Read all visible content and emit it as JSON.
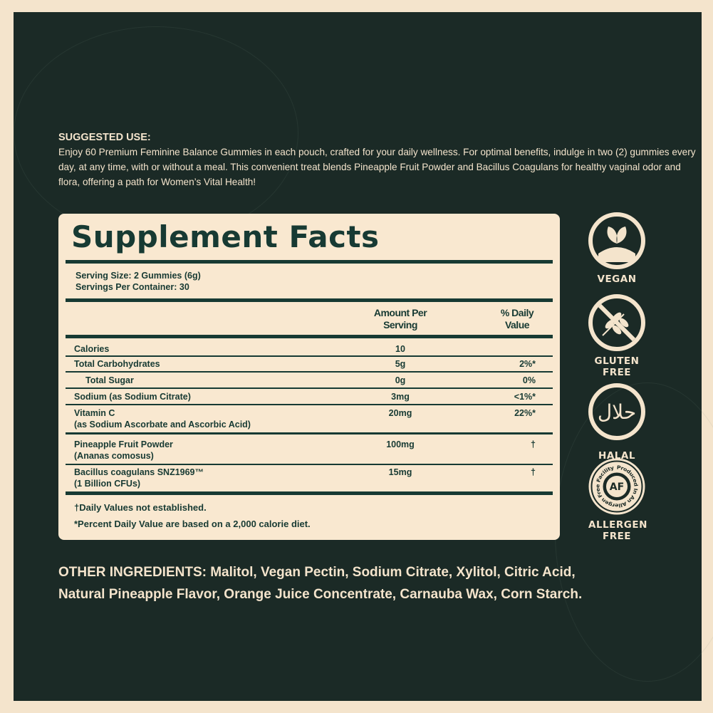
{
  "suggested_use": {
    "heading": "SUGGESTED USE:",
    "text": "Enjoy 60 Premium Feminine Balance Gummies in each pouch, crafted for your daily wellness. For optimal benefits, indulge in two (2) gummies every day, at any time, with or without a meal. This convenient treat blends Pineapple Fruit Powder and Bacillus Coagulans for healthy vaginal odor and flora, offering a path for Women’s Vital Health!"
  },
  "facts": {
    "title": "Supplement Facts",
    "serving_size": "Serving Size: 2 Gummies (6g)",
    "servings_per_container": "Servings Per Container: 30",
    "col_amount": "Amount Per Serving",
    "col_dv": "% Daily Value",
    "rows": [
      {
        "name": "Calories",
        "sub": "",
        "amount": "10",
        "dv": ""
      },
      {
        "name": "Total Carbohydrates",
        "sub": "",
        "amount": "5g",
        "dv": "2%*"
      },
      {
        "name": "Total Sugar",
        "sub": "",
        "amount": "0g",
        "dv": "0%"
      },
      {
        "name": "Sodium (as Sodium Citrate)",
        "sub": "",
        "amount": "3mg",
        "dv": "<1%*"
      },
      {
        "name": "Vitamin C",
        "sub": "(as Sodium Ascorbate and Ascorbic Acid)",
        "amount": "20mg",
        "dv": "22%*"
      },
      {
        "name": "Pineapple Fruit Powder",
        "sub": "(Ananas comosus)",
        "amount": "100mg",
        "dv": "†"
      },
      {
        "name": "Bacillus coagulans SNZ1969™",
        "sub": "(1 Billion CFUs)",
        "amount": "15mg",
        "dv": "†"
      }
    ],
    "footnote1": "†Daily Values not established.",
    "footnote2": "*Percent Daily Value are based on a 2,000 calorie diet."
  },
  "other_ingredients": "OTHER INGREDIENTS: Malitol, Vegan Pectin, Sodium Citrate, Xylitol, Citric Acid, Natural Pineapple Flavor, Orange Juice Concentrate, Carnauba Wax, Corn Starch.",
  "badges": [
    {
      "icon": "vegan-leaf-icon",
      "label": "VEGAN"
    },
    {
      "icon": "gluten-free-wheat-icon",
      "label": "GLUTEN FREE"
    },
    {
      "icon": "halal-icon",
      "label": "HALAL",
      "glyph": "حلال"
    },
    {
      "icon": "allergen-free-icon",
      "label": "ALLERGEN FREE",
      "glyph": "AF",
      "ring_text": "Produced In An Allergen Free Facility"
    }
  ],
  "colors": {
    "background": "#1b2a26",
    "panel": "#f9e8d0",
    "text_dark": "#173a33",
    "cream": "#f4e4cc"
  }
}
